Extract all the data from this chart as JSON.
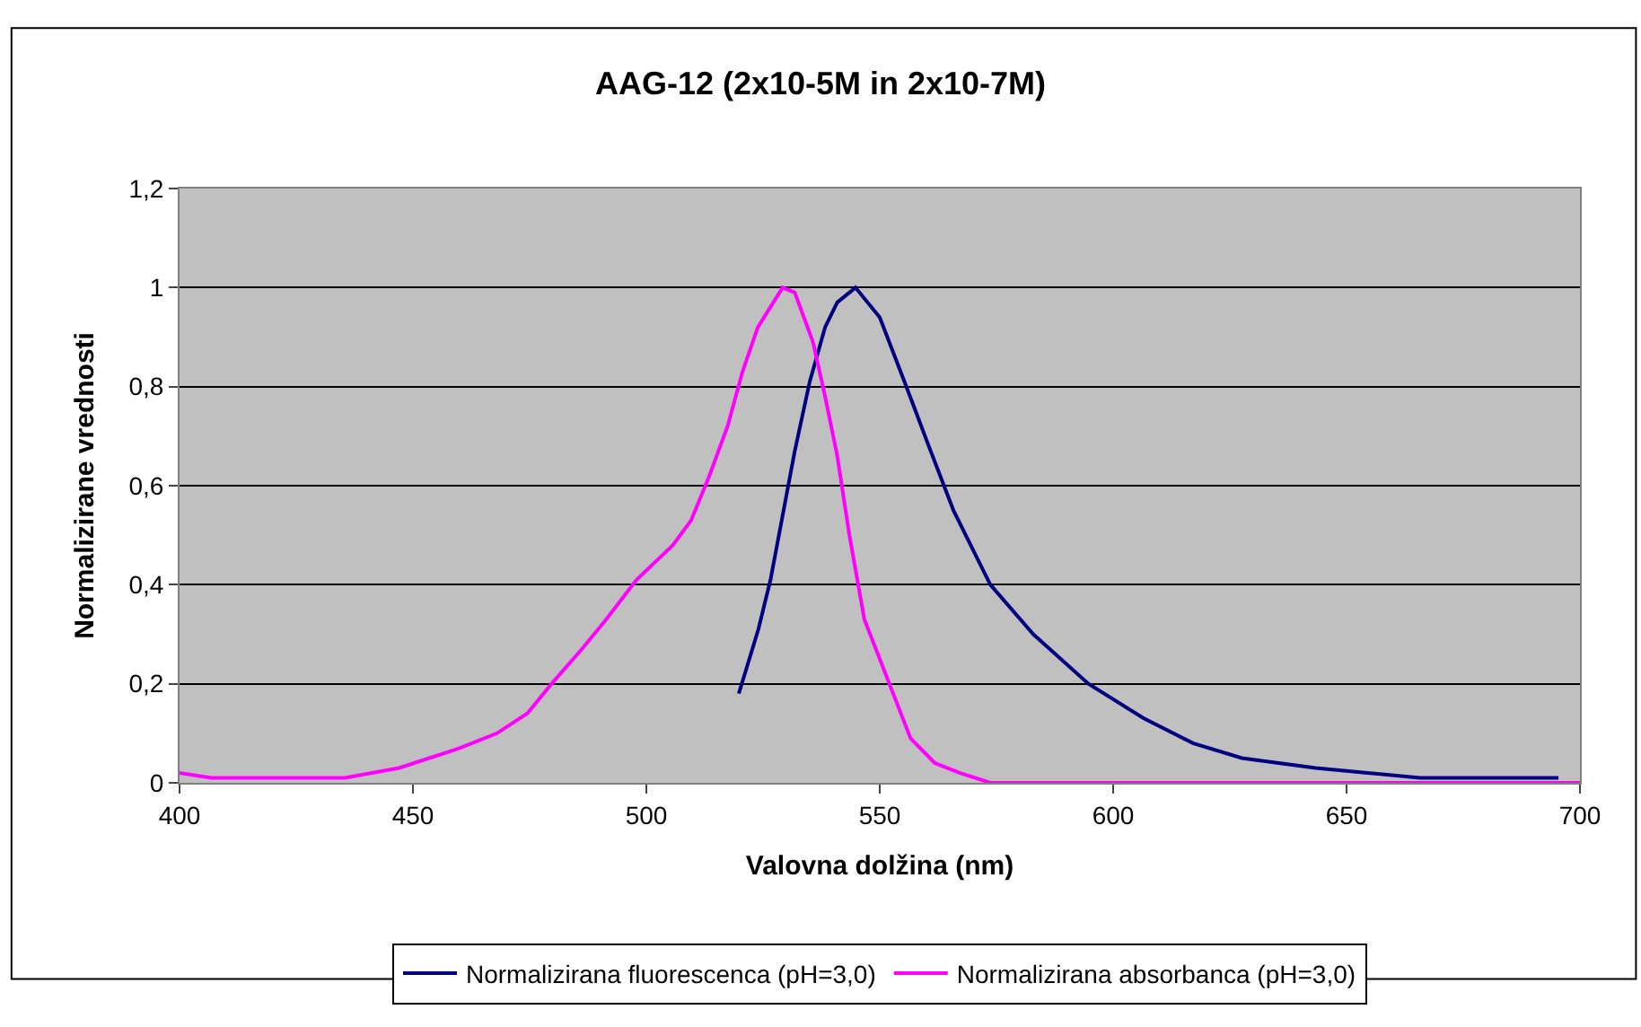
{
  "chart_data": {
    "type": "line",
    "title": "AAG-12 (2x10-5M in 2x10-7M)",
    "xlabel": "Valovna dolžina (nm)",
    "ylabel": "Normalizirane vrednosti",
    "xlim": [
      400,
      700
    ],
    "xticks": [
      400,
      450,
      500,
      550,
      600,
      650,
      700
    ],
    "ylim": [
      0,
      1.2
    ],
    "yticks": [
      {
        "value": 0,
        "label": "0"
      },
      {
        "value": 0.2,
        "label": "0,2"
      },
      {
        "value": 0.4,
        "label": "0,4"
      },
      {
        "value": 0.6,
        "label": "0,6"
      },
      {
        "value": 0.8,
        "label": "0,8"
      },
      {
        "value": 1,
        "label": "1"
      },
      {
        "value": 1.2,
        "label": "1,2"
      }
    ],
    "grid": "y",
    "legend": "bottom",
    "marker": "none",
    "line_style": "solid",
    "series": [
      {
        "name": "Normalizirana fluorescenca (pH=3,0)",
        "color": "#000080",
        "x": [
          519.8,
          524,
          526.6,
          529.2,
          531.8,
          535,
          538.3,
          540.9,
          544.8,
          550,
          555.3,
          560.5,
          565.8,
          573.7,
          582.9,
          594.7,
          606.6,
          617.1,
          627.6,
          643.4,
          665.8,
          695.4
        ],
        "values": [
          0.18,
          0.31,
          0.41,
          0.54,
          0.67,
          0.81,
          0.92,
          0.97,
          1.0,
          0.94,
          0.81,
          0.68,
          0.55,
          0.4,
          0.3,
          0.2,
          0.13,
          0.08,
          0.05,
          0.03,
          0.01,
          0.01
        ]
      },
      {
        "name": "Normalizirana absorbanca (pH=3,0)",
        "color": "#ff00ff",
        "x": [
          400,
          406.8,
          435.4,
          447,
          460,
          468,
          474.5,
          479.7,
          486.2,
          491.4,
          497.9,
          505.7,
          509.6,
          513.5,
          517.4,
          520.6,
          523.9,
          529.2,
          531.8,
          535.7,
          538.3,
          540.9,
          543.5,
          546.7,
          550,
          556.6,
          561.8,
          567.1,
          573.7,
          582.9,
          700
        ],
        "values": [
          0.02,
          0.01,
          0.01,
          0.03,
          0.07,
          0.1,
          0.14,
          0.2,
          0.27,
          0.33,
          0.41,
          0.48,
          0.53,
          0.62,
          0.72,
          0.83,
          0.92,
          1.0,
          0.99,
          0.89,
          0.78,
          0.66,
          0.5,
          0.33,
          0.25,
          0.09,
          0.04,
          0.02,
          0.0,
          0.0,
          0.0
        ]
      }
    ]
  }
}
